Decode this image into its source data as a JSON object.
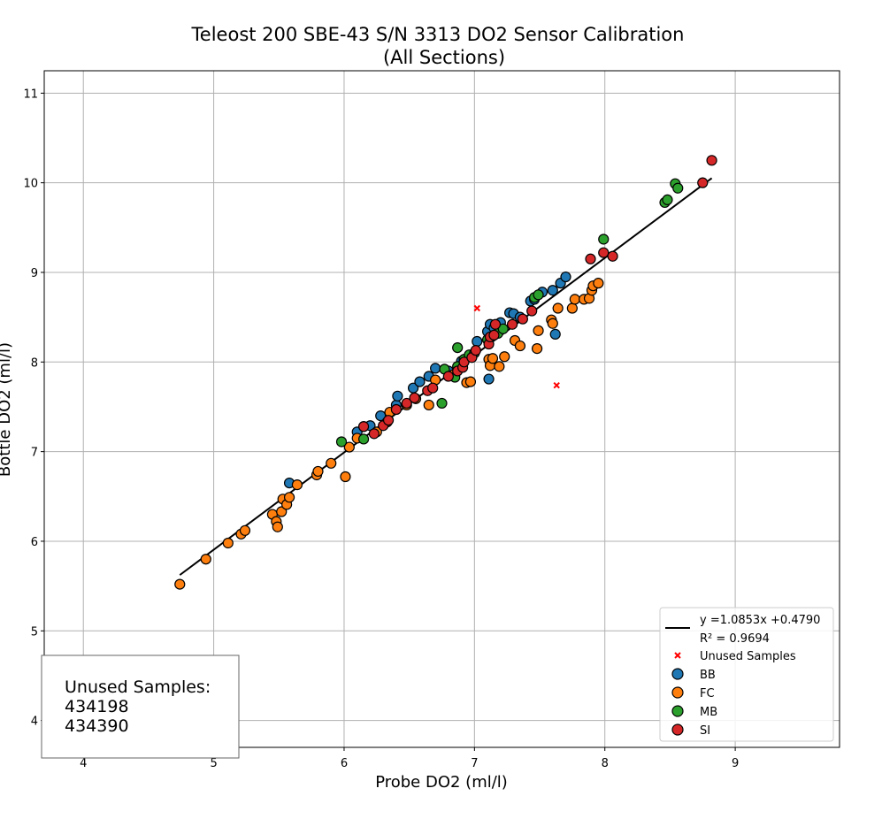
{
  "chart_data": {
    "type": "scatter",
    "title": "Teleost 200 SBE-43 S/N 3313 DO2 Sensor Calibration",
    "subtitle": "(All Sections)",
    "xlabel": "Probe DO2 (ml/l)",
    "ylabel": "Bottle DO2 (ml/l)",
    "xlim": [
      3.7,
      9.8
    ],
    "ylim": [
      3.7,
      11.25
    ],
    "xticks": [
      4,
      5,
      6,
      7,
      8,
      9
    ],
    "yticks": [
      4,
      5,
      6,
      7,
      8,
      9,
      10,
      11
    ],
    "grid": true,
    "legend_position": "lower-right",
    "fit": {
      "label": "y =1.0853x +0.4790",
      "r2_label": "R² = 0.9694",
      "slope": 1.0853,
      "intercept": 0.479,
      "x_range": [
        4.74,
        8.82
      ],
      "color": "#000000"
    },
    "unused_samples": {
      "name": "Unused Samples",
      "color": "#ff0000",
      "points": [
        [
          7.02,
          8.6
        ],
        [
          7.63,
          7.74
        ]
      ]
    },
    "series": [
      {
        "name": "BB",
        "color": "#1f77b4",
        "points": [
          [
            5.58,
            6.65
          ],
          [
            6.1,
            7.22
          ],
          [
            6.15,
            7.28
          ],
          [
            6.2,
            7.29
          ],
          [
            6.28,
            7.4
          ],
          [
            6.4,
            7.52
          ],
          [
            6.41,
            7.62
          ],
          [
            6.53,
            7.71
          ],
          [
            6.58,
            7.78
          ],
          [
            6.65,
            7.84
          ],
          [
            6.7,
            7.93
          ],
          [
            6.8,
            7.9
          ],
          [
            6.9,
            8.01
          ],
          [
            7.02,
            8.23
          ],
          [
            7.1,
            8.34
          ],
          [
            7.12,
            8.42
          ],
          [
            7.15,
            8.38
          ],
          [
            7.2,
            8.44
          ],
          [
            7.27,
            8.55
          ],
          [
            7.3,
            8.54
          ],
          [
            7.35,
            8.5
          ],
          [
            7.43,
            8.68
          ],
          [
            7.46,
            8.7
          ],
          [
            7.52,
            8.78
          ],
          [
            7.6,
            8.8
          ],
          [
            7.66,
            8.88
          ],
          [
            7.7,
            8.95
          ],
          [
            7.62,
            8.31
          ],
          [
            7.11,
            7.81
          ]
        ]
      },
      {
        "name": "FC",
        "color": "#ff7f0e",
        "points": [
          [
            4.74,
            5.52
          ],
          [
            4.94,
            5.8
          ],
          [
            5.11,
            5.98
          ],
          [
            5.21,
            6.08
          ],
          [
            5.24,
            6.12
          ],
          [
            5.45,
            6.3
          ],
          [
            5.48,
            6.22
          ],
          [
            5.49,
            6.16
          ],
          [
            5.52,
            6.33
          ],
          [
            5.53,
            6.47
          ],
          [
            5.56,
            6.41
          ],
          [
            5.58,
            6.49
          ],
          [
            5.64,
            6.63
          ],
          [
            5.79,
            6.74
          ],
          [
            5.8,
            6.78
          ],
          [
            5.9,
            6.87
          ],
          [
            6.01,
            6.72
          ],
          [
            6.04,
            7.05
          ],
          [
            6.1,
            7.15
          ],
          [
            6.25,
            7.22
          ],
          [
            6.33,
            7.33
          ],
          [
            6.35,
            7.44
          ],
          [
            6.48,
            7.52
          ],
          [
            6.55,
            7.59
          ],
          [
            6.65,
            7.52
          ],
          [
            6.7,
            7.8
          ],
          [
            6.84,
            7.86
          ],
          [
            6.94,
            7.77
          ],
          [
            6.97,
            7.78
          ],
          [
            7.11,
            8.03
          ],
          [
            7.12,
            7.96
          ],
          [
            7.14,
            8.04
          ],
          [
            7.19,
            7.95
          ],
          [
            7.23,
            8.06
          ],
          [
            7.31,
            8.24
          ],
          [
            7.35,
            8.18
          ],
          [
            7.48,
            8.15
          ],
          [
            7.49,
            8.35
          ],
          [
            7.59,
            8.47
          ],
          [
            7.6,
            8.43
          ],
          [
            7.64,
            8.6
          ],
          [
            7.75,
            8.6
          ],
          [
            7.77,
            8.7
          ],
          [
            7.84,
            8.7
          ],
          [
            7.88,
            8.71
          ],
          [
            7.9,
            8.8
          ],
          [
            7.91,
            8.85
          ],
          [
            7.95,
            8.88
          ]
        ]
      },
      {
        "name": "MB",
        "color": "#2ca02c",
        "points": [
          [
            5.98,
            7.11
          ],
          [
            6.15,
            7.14
          ],
          [
            6.75,
            7.54
          ],
          [
            6.77,
            7.92
          ],
          [
            6.85,
            7.83
          ],
          [
            6.87,
            8.16
          ],
          [
            6.87,
            7.95
          ],
          [
            6.92,
            8.03
          ],
          [
            6.96,
            8.08
          ],
          [
            7.0,
            8.1
          ],
          [
            7.1,
            8.25
          ],
          [
            7.18,
            8.32
          ],
          [
            7.22,
            8.37
          ],
          [
            7.46,
            8.72
          ],
          [
            7.49,
            8.75
          ],
          [
            7.99,
            9.37
          ],
          [
            8.46,
            9.78
          ],
          [
            8.48,
            9.81
          ],
          [
            8.54,
            9.99
          ],
          [
            8.56,
            9.94
          ]
        ]
      },
      {
        "name": "SI",
        "color": "#d62728",
        "points": [
          [
            6.15,
            7.28
          ],
          [
            6.23,
            7.2
          ],
          [
            6.3,
            7.29
          ],
          [
            6.34,
            7.35
          ],
          [
            6.4,
            7.47
          ],
          [
            6.48,
            7.54
          ],
          [
            6.54,
            7.6
          ],
          [
            6.64,
            7.68
          ],
          [
            6.68,
            7.71
          ],
          [
            6.8,
            7.84
          ],
          [
            6.87,
            7.9
          ],
          [
            6.91,
            7.94
          ],
          [
            6.92,
            8.0
          ],
          [
            6.98,
            8.05
          ],
          [
            7.01,
            8.13
          ],
          [
            7.11,
            8.2
          ],
          [
            7.12,
            8.28
          ],
          [
            7.15,
            8.3
          ],
          [
            7.16,
            8.42
          ],
          [
            7.29,
            8.42
          ],
          [
            7.37,
            8.48
          ],
          [
            7.44,
            8.57
          ],
          [
            7.89,
            9.15
          ],
          [
            7.99,
            9.22
          ],
          [
            8.06,
            9.18
          ],
          [
            8.75,
            10.0
          ],
          [
            8.82,
            10.25
          ]
        ]
      }
    ],
    "unused_box": {
      "title": "Unused Samples:",
      "samples": [
        "434198",
        "434390"
      ]
    }
  }
}
